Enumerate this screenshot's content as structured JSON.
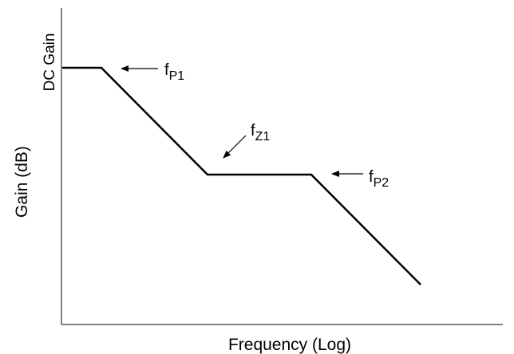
{
  "x_axis_label": "Frequency (Log)",
  "y_axis_label": "Gain (dB)",
  "dc_gain_label": "DC Gain",
  "points": [
    {
      "main": "f",
      "sub": "P1"
    },
    {
      "main": "f",
      "sub": "Z1"
    },
    {
      "main": "f",
      "sub": "P2"
    }
  ],
  "colors": {
    "line": "#000000",
    "background": "#ffffff"
  }
}
